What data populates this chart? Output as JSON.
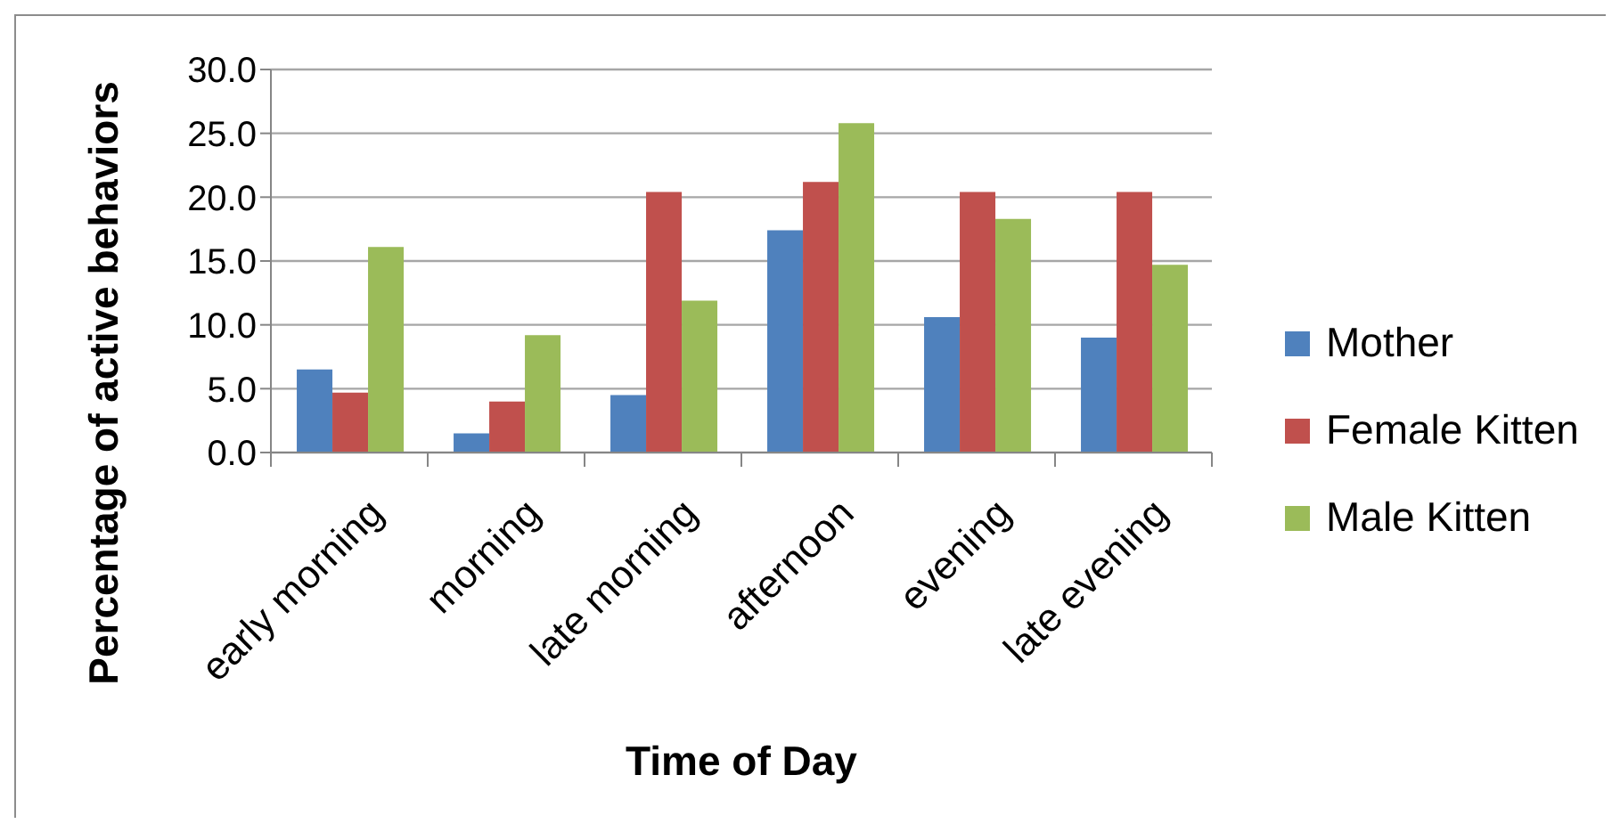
{
  "chart_data": {
    "type": "bar",
    "xlabel": "Time of Day",
    "ylabel": "Percentage of active behaviors",
    "categories": [
      "early morning",
      "morning",
      "late morning",
      "afternoon",
      "evening",
      "late evening"
    ],
    "series": [
      {
        "name": "Mother",
        "color": "#4f81bd",
        "values": [
          6.5,
          1.5,
          4.5,
          17.4,
          10.6,
          9.0
        ]
      },
      {
        "name": "Female Kitten",
        "color": "#c0504d",
        "values": [
          4.7,
          4.0,
          20.4,
          21.2,
          20.4,
          20.4
        ]
      },
      {
        "name": "Male Kitten",
        "color": "#9bbb59",
        "values": [
          16.1,
          9.2,
          11.9,
          25.8,
          18.3,
          14.7
        ]
      }
    ],
    "ylim": [
      0,
      30
    ],
    "yticks": [
      {
        "value": 0,
        "label": "0.0"
      },
      {
        "value": 5,
        "label": "5.0"
      },
      {
        "value": 10,
        "label": "10.0"
      },
      {
        "value": 15,
        "label": "15.0"
      },
      {
        "value": 20,
        "label": "20.0"
      },
      {
        "value": 25,
        "label": "25.0"
      },
      {
        "value": 30,
        "label": "30.0"
      }
    ],
    "grid": "y",
    "legend": "right"
  }
}
